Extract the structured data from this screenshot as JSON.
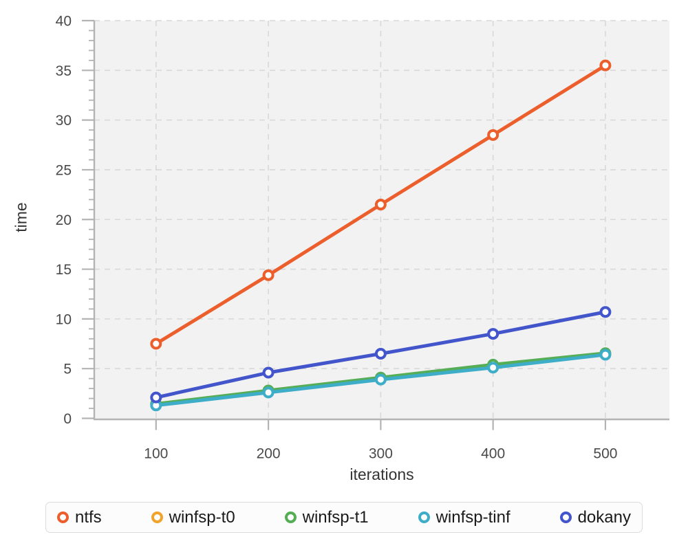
{
  "chart_data": {
    "type": "line",
    "title": "",
    "xlabel": "iterations",
    "ylabel": "time",
    "x": [
      100,
      200,
      300,
      400,
      500
    ],
    "series": [
      {
        "name": "ntfs",
        "color": "#ec5f2c",
        "values": [
          7.5,
          14.4,
          21.5,
          28.5,
          35.5
        ]
      },
      {
        "name": "winfsp-t0",
        "color": "#f2a32b",
        "values": [
          1.4,
          2.75,
          4.0,
          5.3,
          6.45
        ]
      },
      {
        "name": "winfsp-t1",
        "color": "#55ad55",
        "values": [
          1.45,
          2.8,
          4.1,
          5.4,
          6.55
        ]
      },
      {
        "name": "winfsp-tinf",
        "color": "#3eadc8",
        "values": [
          1.3,
          2.6,
          3.9,
          5.1,
          6.4
        ]
      },
      {
        "name": "dokany",
        "color": "#4355cb",
        "values": [
          2.1,
          4.6,
          6.5,
          8.5,
          10.7
        ]
      }
    ],
    "x_ticks": [
      100,
      200,
      300,
      400,
      500
    ],
    "y_ticks": [
      0,
      5,
      10,
      15,
      20,
      25,
      30,
      35,
      40
    ],
    "y_minor_step": 1,
    "xlim": [
      45,
      557
    ],
    "ylim": [
      0,
      40
    ],
    "grid": "dashed",
    "legend_position": "bottom",
    "plot_bg": "#f2f2f2",
    "grid_color": "#d8d8d8",
    "axis_color": "#b3b3b3",
    "tick_label_color": "#4a4a4a",
    "axis_title_color": "#333333",
    "marker": "open-circle"
  }
}
